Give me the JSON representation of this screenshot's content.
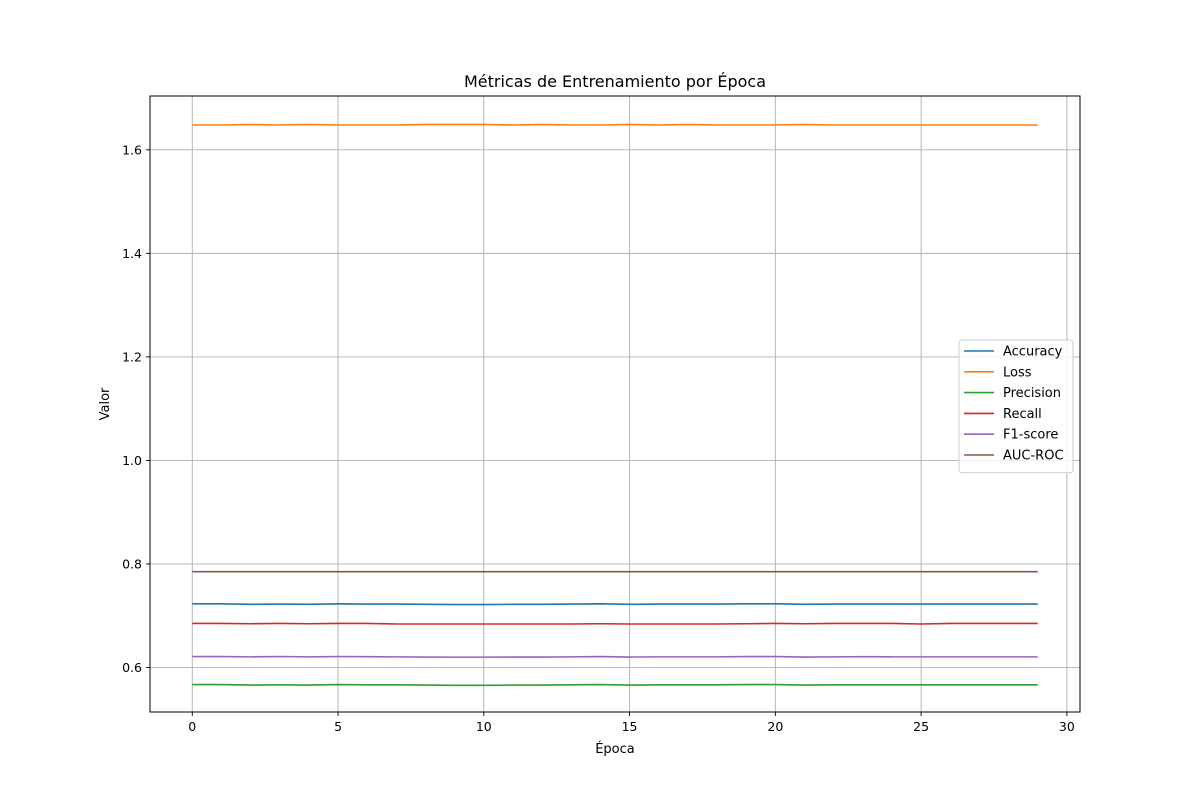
{
  "chart_data": {
    "type": "line",
    "title": "Métricas de Entrenamiento por Época",
    "xlabel": "Época",
    "ylabel": "Valor",
    "xlim": [
      -1.45,
      30.45
    ],
    "ylim": [
      0.514,
      1.704
    ],
    "xticks": [
      0,
      5,
      10,
      15,
      20,
      25,
      30
    ],
    "yticks": [
      0.6,
      0.8,
      1.0,
      1.2,
      1.4,
      1.6
    ],
    "grid": true,
    "legend_position": "center-right",
    "x": [
      0,
      1,
      2,
      3,
      4,
      5,
      6,
      7,
      8,
      9,
      10,
      11,
      12,
      13,
      14,
      15,
      16,
      17,
      18,
      19,
      20,
      21,
      22,
      23,
      24,
      25,
      26,
      27,
      28,
      29
    ],
    "series": [
      {
        "name": "Accuracy",
        "color": "#1f77b4",
        "values": [
          0.723,
          0.723,
          0.722,
          0.7225,
          0.722,
          0.723,
          0.7225,
          0.7225,
          0.722,
          0.7215,
          0.7215,
          0.722,
          0.722,
          0.7225,
          0.723,
          0.722,
          0.7225,
          0.7225,
          0.7225,
          0.723,
          0.723,
          0.722,
          0.7225,
          0.7225,
          0.7225,
          0.7225,
          0.7225,
          0.7225,
          0.7225,
          0.7225
        ]
      },
      {
        "name": "Loss",
        "color": "#ff7f0e",
        "values": [
          1.648,
          1.648,
          1.649,
          1.648,
          1.649,
          1.648,
          1.648,
          1.648,
          1.649,
          1.649,
          1.649,
          1.648,
          1.649,
          1.648,
          1.648,
          1.649,
          1.648,
          1.649,
          1.648,
          1.648,
          1.648,
          1.649,
          1.648,
          1.648,
          1.648,
          1.648,
          1.648,
          1.648,
          1.648,
          1.648
        ]
      },
      {
        "name": "Precision",
        "color": "#2ca02c",
        "values": [
          0.567,
          0.567,
          0.566,
          0.5665,
          0.566,
          0.567,
          0.5665,
          0.5665,
          0.566,
          0.5655,
          0.5655,
          0.566,
          0.566,
          0.5665,
          0.567,
          0.566,
          0.5665,
          0.5665,
          0.5665,
          0.567,
          0.567,
          0.566,
          0.5665,
          0.5665,
          0.5665,
          0.5665,
          0.5665,
          0.5665,
          0.5665,
          0.5665
        ]
      },
      {
        "name": "Recall",
        "color": "#d62728",
        "values": [
          0.685,
          0.685,
          0.6845,
          0.685,
          0.6845,
          0.685,
          0.685,
          0.684,
          0.684,
          0.684,
          0.684,
          0.684,
          0.684,
          0.684,
          0.6845,
          0.684,
          0.684,
          0.684,
          0.684,
          0.6845,
          0.685,
          0.6845,
          0.685,
          0.685,
          0.685,
          0.684,
          0.685,
          0.685,
          0.685,
          0.685
        ]
      },
      {
        "name": "F1-score",
        "color": "#9467bd",
        "values": [
          0.621,
          0.621,
          0.6205,
          0.621,
          0.6205,
          0.621,
          0.6208,
          0.6205,
          0.6202,
          0.62,
          0.62,
          0.6202,
          0.6202,
          0.6205,
          0.621,
          0.6202,
          0.6205,
          0.6205,
          0.6205,
          0.621,
          0.621,
          0.6202,
          0.6205,
          0.6208,
          0.6205,
          0.6205,
          0.6205,
          0.6205,
          0.6205,
          0.6205
        ]
      },
      {
        "name": "AUC-ROC",
        "color": "#8c564b",
        "values": [
          0.785,
          0.785,
          0.785,
          0.785,
          0.785,
          0.785,
          0.785,
          0.785,
          0.785,
          0.785,
          0.785,
          0.785,
          0.785,
          0.785,
          0.785,
          0.785,
          0.785,
          0.785,
          0.785,
          0.785,
          0.785,
          0.785,
          0.785,
          0.785,
          0.785,
          0.785,
          0.785,
          0.785,
          0.785,
          0.785
        ]
      }
    ]
  }
}
